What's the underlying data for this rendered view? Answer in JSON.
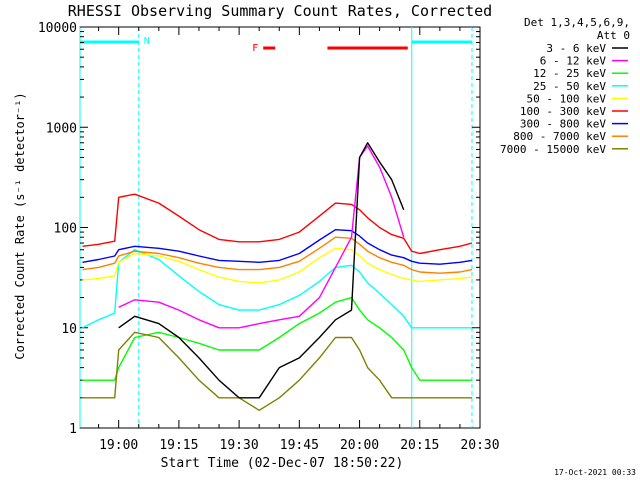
{
  "chart_data": {
    "type": "line",
    "title": "RHESSI Observing Summary Count Rates, Corrected",
    "xlabel": "Start Time (02-Dec-07 18:50:22)",
    "ylabel": "Corrected Count Rate (s⁻¹ detector⁻¹)",
    "yscale": "log",
    "xlim": [
      "18:50:22",
      "20:30:00"
    ],
    "ylim": [
      1,
      10000
    ],
    "x_ticks": [
      "19:00",
      "19:15",
      "19:30",
      "19:45",
      "20:00",
      "20:15",
      "20:30"
    ],
    "y_ticks": [
      "1",
      "10",
      "100",
      "1000",
      "10000"
    ],
    "legend_header": [
      "Det 1,3,4,5,6,9,",
      "Att 0"
    ],
    "legend_position": "right",
    "timestamp": "17-Oct-2021 00:33",
    "flag_labels": {
      "night": "N",
      "flare": "F"
    },
    "night_intervals": [
      [
        "18:50:22",
        "19:05:00"
      ],
      [
        "20:13:00",
        "20:28:00"
      ]
    ],
    "flare_intervals": [
      [
        "19:36:00",
        "19:39:00"
      ],
      [
        "19:52:00",
        "20:12:00"
      ]
    ],
    "sample_times": [
      "18:51",
      "18:55",
      "18:59",
      "19:00",
      "19:04",
      "19:10",
      "19:15",
      "19:20",
      "19:25",
      "19:30",
      "19:35",
      "19:40",
      "19:45",
      "19:50",
      "19:54",
      "19:58",
      "20:00",
      "20:02",
      "20:05",
      "20:08",
      "20:11",
      "20:13",
      "20:15",
      "20:20",
      "20:25",
      "20:28"
    ],
    "series": [
      {
        "name": "3 - 6 keV",
        "color": "#000000",
        "values": [
          null,
          null,
          null,
          10,
          13,
          11,
          8,
          5,
          3,
          2,
          2,
          4,
          5,
          8,
          12,
          15,
          500,
          700,
          450,
          300,
          150,
          null,
          null,
          null,
          null,
          null
        ]
      },
      {
        "name": "6 - 12 keV",
        "color": "#ff00ff",
        "values": [
          null,
          null,
          null,
          16,
          19,
          18,
          15,
          12,
          10,
          10,
          11,
          12,
          13,
          20,
          40,
          80,
          500,
          650,
          400,
          200,
          80,
          null,
          null,
          null,
          null,
          null
        ]
      },
      {
        "name": "12 - 25 keV",
        "color": "#00ff00",
        "values": [
          3,
          3,
          3,
          4,
          8,
          9,
          8,
          7,
          6,
          6,
          6,
          8,
          11,
          14,
          18,
          20,
          15,
          12,
          10,
          8,
          6,
          4,
          3,
          3,
          3,
          3
        ]
      },
      {
        "name": "25 - 50 keV",
        "color": "#00ffff",
        "values": [
          10,
          12,
          14,
          45,
          60,
          48,
          33,
          23,
          17,
          15,
          15,
          17,
          21,
          29,
          40,
          42,
          36,
          28,
          22,
          17,
          13,
          10,
          10,
          10,
          10,
          10
        ]
      },
      {
        "name": "50 - 100 keV",
        "color": "#ffff00",
        "values": [
          30,
          31,
          33,
          45,
          55,
          52,
          46,
          38,
          32,
          29,
          28,
          30,
          36,
          50,
          62,
          60,
          52,
          44,
          38,
          34,
          31,
          30,
          29,
          30,
          31,
          32
        ]
      },
      {
        "name": "100 - 300 keV",
        "color": "#ff0000",
        "values": [
          65,
          68,
          73,
          200,
          215,
          175,
          130,
          95,
          76,
          72,
          72,
          76,
          90,
          130,
          175,
          170,
          150,
          125,
          100,
          85,
          78,
          58,
          55,
          60,
          65,
          70
        ]
      },
      {
        "name": "300 - 800 keV",
        "color": "#0000ff",
        "values": [
          45,
          48,
          52,
          60,
          65,
          62,
          58,
          52,
          47,
          46,
          45,
          47,
          55,
          75,
          95,
          93,
          82,
          70,
          60,
          53,
          50,
          46,
          44,
          43,
          45,
          47
        ]
      },
      {
        "name": "800 - 7000 keV",
        "color": "#ff8000",
        "values": [
          38,
          40,
          44,
          52,
          58,
          55,
          50,
          44,
          40,
          38,
          38,
          40,
          46,
          62,
          80,
          78,
          68,
          58,
          50,
          45,
          42,
          38,
          36,
          35,
          36,
          38
        ]
      },
      {
        "name": "7000 - 15000 keV",
        "color": "#808000",
        "values": [
          2,
          2,
          2,
          6,
          9,
          8,
          5,
          3,
          2,
          2,
          1.5,
          2,
          3,
          5,
          8,
          8,
          6,
          4,
          3,
          2,
          2,
          2,
          2,
          2,
          2,
          2
        ]
      }
    ]
  }
}
